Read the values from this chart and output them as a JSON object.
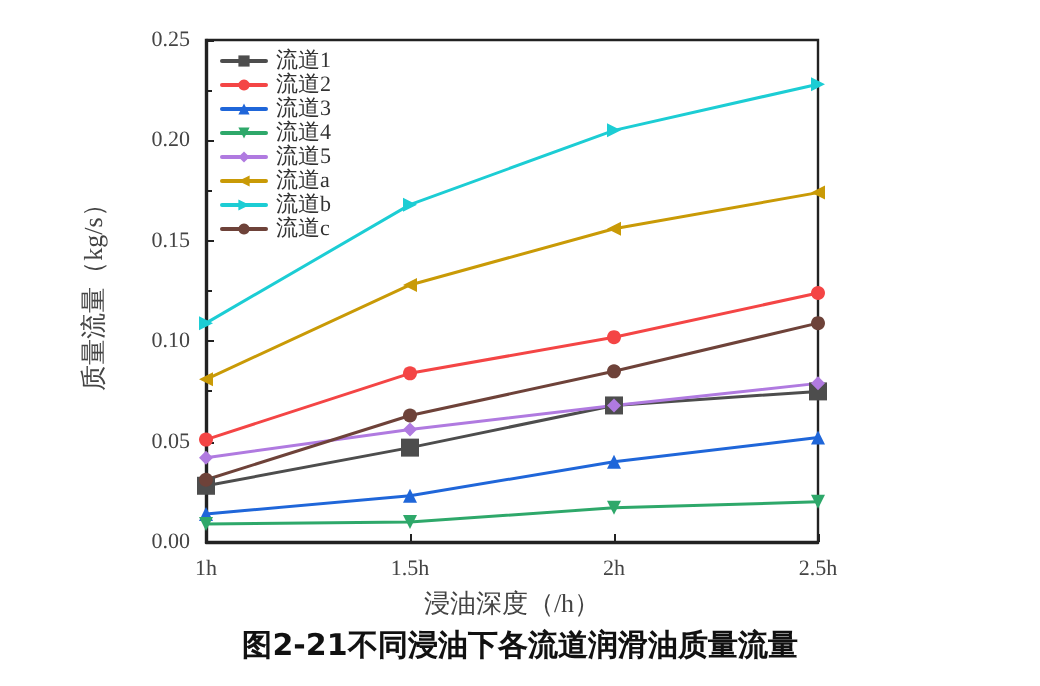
{
  "chart_data": {
    "type": "line",
    "title": "图2-21不同浸油下各流道润滑油质量流量",
    "xlabel": "浸油深度（/h）",
    "ylabel": "质量流量（kg/s）",
    "categories": [
      "1h",
      "1.5h",
      "2h",
      "2.5h"
    ],
    "ylim": [
      0,
      0.25
    ],
    "yticks": [
      {
        "value": 0,
        "label": "0.00"
      },
      0.05,
      {
        "value": 0.1,
        "label": "0.10"
      },
      0.15,
      {
        "value": 0.2,
        "label": "0.20"
      },
      0.25
    ],
    "grid": false,
    "legend": "top left",
    "line_style": "solid",
    "series": [
      {
        "name": "流道1",
        "color": "#4d4d4d",
        "marker": "square",
        "values": [
          0.028,
          0.047,
          0.068,
          0.075
        ]
      },
      {
        "name": "流道2",
        "color": "#f44545",
        "marker": "circle",
        "values": [
          0.051,
          0.084,
          0.102,
          0.124
        ]
      },
      {
        "name": "流道3",
        "color": "#1f66d9",
        "marker": "triangle",
        "values": [
          0.014,
          0.023,
          0.04,
          0.052
        ]
      },
      {
        "name": "流道4",
        "color": "#2ea86a",
        "marker": "triangle-down",
        "values": [
          0.009,
          0.01,
          0.017,
          0.02
        ]
      },
      {
        "name": "流道5",
        "color": "#b07ae0",
        "marker": "diamond",
        "values": [
          0.042,
          0.056,
          0.068,
          0.079
        ]
      },
      {
        "name": "流道a",
        "color": "#c99a06",
        "marker": "triangle-left",
        "values": [
          0.081,
          0.128,
          0.156,
          0.174
        ]
      },
      {
        "name": "流道b",
        "color": "#1ccdd4",
        "marker": "triangle-right",
        "values": [
          0.109,
          0.168,
          0.205,
          0.228
        ]
      },
      {
        "name": "流道c",
        "color": "#6e4239",
        "marker": "circle",
        "values": [
          0.031,
          0.063,
          0.085,
          0.109
        ]
      }
    ]
  }
}
